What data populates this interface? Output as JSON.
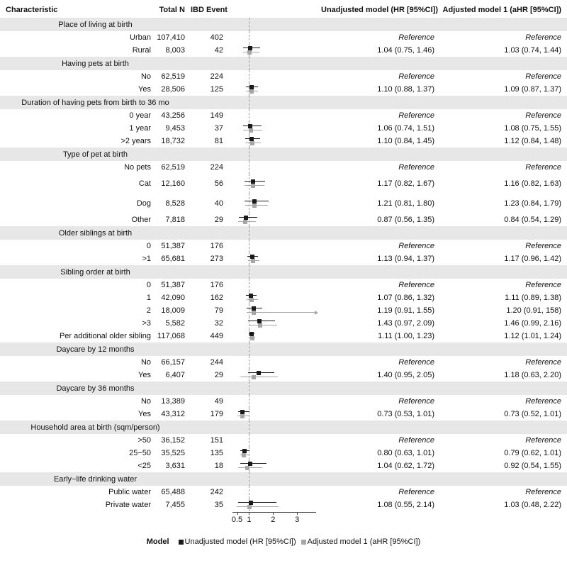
{
  "chart_data": {
    "type": "scatter",
    "subtype": "forest_plot",
    "title": "",
    "header": {
      "characteristic": "Characteristic",
      "total_n": "Total N",
      "ibd_event": "IBD Event",
      "unadjusted": "Unadjusted model (HR [95%CI])",
      "adjusted": "Adjusted model 1 (aHR [95%CI])"
    },
    "axis": {
      "scale": "linear",
      "min": 0.1,
      "max": 4.0,
      "ref": 1,
      "line_from": 0.3,
      "line_to": 3.8,
      "arrow_clamp": 3.72,
      "ticks": [
        {
          "value": 0.5,
          "label": "0.5"
        },
        {
          "value": 1,
          "label": "1"
        },
        {
          "value": 2,
          "label": "2"
        },
        {
          "value": 3,
          "label": "3"
        }
      ]
    },
    "colors": {
      "unadjusted": "#1a1a1a",
      "adjusted": "#a6a6a6",
      "section_band": "#e7e7e7"
    },
    "legend": {
      "title": "Model",
      "items": [
        {
          "label": "Unadjusted model (HR [95%CI])",
          "key": "unadjusted"
        },
        {
          "label": "Adjusted model 1 (aHR [95%CI])",
          "key": "adjusted"
        }
      ]
    },
    "rows": [
      {
        "type": "section",
        "label": "Place of living at birth"
      },
      {
        "type": "data",
        "label": "Urban",
        "total_n": "107,410",
        "ibd_event": "402",
        "unadjusted": "Reference",
        "adjusted": "Reference",
        "is_reference": true
      },
      {
        "type": "data",
        "label": "Rural",
        "total_n": "8,003",
        "ibd_event": "42",
        "unadjusted": "1.04 (0.75, 1.46)",
        "adjusted": "1.03 (0.74, 1.44)",
        "hr": {
          "est": 1.04,
          "lo": 0.75,
          "hi": 1.46
        },
        "ahr": {
          "est": 1.03,
          "lo": 0.74,
          "hi": 1.44
        }
      },
      {
        "type": "section",
        "label": "Having pets at birth"
      },
      {
        "type": "data",
        "label": "No",
        "total_n": "62,519",
        "ibd_event": "224",
        "unadjusted": "Reference",
        "adjusted": "Reference",
        "is_reference": true
      },
      {
        "type": "data",
        "label": "Yes",
        "total_n": "28,506",
        "ibd_event": "125",
        "unadjusted": "1.10 (0.88, 1.37)",
        "adjusted": "1.09 (0.87, 1.37)",
        "hr": {
          "est": 1.1,
          "lo": 0.88,
          "hi": 1.37
        },
        "ahr": {
          "est": 1.09,
          "lo": 0.87,
          "hi": 1.37
        }
      },
      {
        "type": "section",
        "label": "Duration of having pets from birth to 36 mo"
      },
      {
        "type": "data",
        "label": "0 year",
        "total_n": "43,256",
        "ibd_event": "149",
        "unadjusted": "Reference",
        "adjusted": "Reference",
        "is_reference": true
      },
      {
        "type": "data",
        "label": "1 year",
        "total_n": "9,453",
        "ibd_event": "37",
        "unadjusted": "1.06 (0.74, 1.51)",
        "adjusted": "1.08 (0.75, 1.55)",
        "hr": {
          "est": 1.06,
          "lo": 0.74,
          "hi": 1.51
        },
        "ahr": {
          "est": 1.08,
          "lo": 0.75,
          "hi": 1.55
        }
      },
      {
        "type": "data",
        "label": ">2 years",
        "total_n": "18,732",
        "ibd_event": "81",
        "unadjusted": "1.10 (0.84, 1.45)",
        "adjusted": "1.12 (0.84, 1.48)",
        "hr": {
          "est": 1.1,
          "lo": 0.84,
          "hi": 1.45
        },
        "ahr": {
          "est": 1.12,
          "lo": 0.84,
          "hi": 1.48
        }
      },
      {
        "type": "section",
        "label": "Type of pet at birth"
      },
      {
        "type": "data",
        "label": "No pets",
        "total_n": "62,519",
        "ibd_event": "224",
        "unadjusted": "Reference",
        "adjusted": "Reference",
        "is_reference": true
      },
      {
        "type": "data",
        "label": "Cat",
        "total_n": "12,160",
        "ibd_event": "56",
        "tall": true,
        "unadjusted": "1.17 (0.82, 1.67)",
        "adjusted": "1.16 (0.82, 1.63)",
        "hr": {
          "est": 1.17,
          "lo": 0.82,
          "hi": 1.67
        },
        "ahr": {
          "est": 1.16,
          "lo": 0.82,
          "hi": 1.63
        }
      },
      {
        "type": "data",
        "label": "Dog",
        "total_n": "8,528",
        "ibd_event": "40",
        "tall": true,
        "unadjusted": "1.21 (0.81, 1.80)",
        "adjusted": "1.23 (0.84, 1.79)",
        "hr": {
          "est": 1.21,
          "lo": 0.81,
          "hi": 1.8
        },
        "ahr": {
          "est": 1.23,
          "lo": 0.84,
          "hi": 1.79
        }
      },
      {
        "type": "data",
        "label": "Other",
        "total_n": "7,818",
        "ibd_event": "29",
        "unadjusted": "0.87 (0.56, 1.35)",
        "adjusted": "0.84 (0.54, 1.29)",
        "hr": {
          "est": 0.87,
          "lo": 0.56,
          "hi": 1.35
        },
        "ahr": {
          "est": 0.84,
          "lo": 0.54,
          "hi": 1.29
        }
      },
      {
        "type": "section",
        "label": "Older siblings at birth"
      },
      {
        "type": "data",
        "label": "0",
        "total_n": "51,387",
        "ibd_event": "176",
        "unadjusted": "Reference",
        "adjusted": "Reference",
        "is_reference": true
      },
      {
        "type": "data",
        "label": ">1",
        "total_n": "65,681",
        "ibd_event": "273",
        "unadjusted": "1.13 (0.94, 1.37)",
        "adjusted": "1.17 (0.96, 1.42)",
        "hr": {
          "est": 1.13,
          "lo": 0.94,
          "hi": 1.37
        },
        "ahr": {
          "est": 1.17,
          "lo": 0.96,
          "hi": 1.42
        }
      },
      {
        "type": "section",
        "label": "Sibling order at birth"
      },
      {
        "type": "data",
        "label": "0",
        "total_n": "51,387",
        "ibd_event": "176",
        "unadjusted": "Reference",
        "adjusted": "Reference",
        "is_reference": true
      },
      {
        "type": "data",
        "label": "1",
        "total_n": "42,090",
        "ibd_event": "162",
        "unadjusted": "1.07 (0.86, 1.32)",
        "adjusted": "1.11 (0.89, 1.38)",
        "hr": {
          "est": 1.07,
          "lo": 0.86,
          "hi": 1.32
        },
        "ahr": {
          "est": 1.11,
          "lo": 0.89,
          "hi": 1.38
        }
      },
      {
        "type": "data",
        "label": "2",
        "total_n": "18,009",
        "ibd_event": "79",
        "unadjusted": "1.19 (0.91, 1.55)",
        "adjusted": "1.20 (0.91, 158)",
        "hr": {
          "est": 1.19,
          "lo": 0.91,
          "hi": 1.55
        },
        "ahr": {
          "est": 1.2,
          "lo": 0.91,
          "hi": 158,
          "arrow": true
        }
      },
      {
        "type": "data",
        "label": ">3",
        "total_n": "5,582",
        "ibd_event": "32",
        "unadjusted": "1.43 (0.97, 2.09)",
        "adjusted": "1.46 (0.99, 2.16)",
        "hr": {
          "est": 1.43,
          "lo": 0.97,
          "hi": 2.09
        },
        "ahr": {
          "est": 1.46,
          "lo": 0.99,
          "hi": 2.16
        }
      },
      {
        "type": "data",
        "label": "Per additional older sibling",
        "total_n": "117,068",
        "ibd_event": "449",
        "unadjusted": "1.11 (1.00, 1.23)",
        "adjusted": "1.12 (1.01, 1.24)",
        "hr": {
          "est": 1.11,
          "lo": 1.0,
          "hi": 1.23
        },
        "ahr": {
          "est": 1.12,
          "lo": 1.01,
          "hi": 1.24
        }
      },
      {
        "type": "section",
        "label": "Daycare by 12 months"
      },
      {
        "type": "data",
        "label": "No",
        "total_n": "66,157",
        "ibd_event": "244",
        "unadjusted": "Reference",
        "adjusted": "Reference",
        "is_reference": true
      },
      {
        "type": "data",
        "label": "Yes",
        "total_n": "6,407",
        "ibd_event": "29",
        "unadjusted": "1.40 (0.95, 2.05)",
        "adjusted": "1.18 (0.63, 2.20)",
        "hr": {
          "est": 1.4,
          "lo": 0.95,
          "hi": 2.05
        },
        "ahr": {
          "est": 1.18,
          "lo": 0.63,
          "hi": 2.2
        }
      },
      {
        "type": "section",
        "label": "Daycare by 36 months"
      },
      {
        "type": "data",
        "label": "No",
        "total_n": "13,389",
        "ibd_event": "49",
        "unadjusted": "Reference",
        "adjusted": "Reference",
        "is_reference": true
      },
      {
        "type": "data",
        "label": "Yes",
        "total_n": "43,312",
        "ibd_event": "179",
        "unadjusted": "0.73 (0.53, 1.01)",
        "adjusted": "0.73 (0.52, 1.01)",
        "hr": {
          "est": 0.73,
          "lo": 0.53,
          "hi": 1.01
        },
        "ahr": {
          "est": 0.73,
          "lo": 0.52,
          "hi": 1.01
        }
      },
      {
        "type": "section",
        "label": "Household area at birth (sqm/person)"
      },
      {
        "type": "data",
        "label": ">50",
        "total_n": "36,152",
        "ibd_event": "151",
        "unadjusted": "Reference",
        "adjusted": "Reference",
        "is_reference": true
      },
      {
        "type": "data",
        "label": "25−50",
        "total_n": "35,525",
        "ibd_event": "135",
        "unadjusted": "0.80 (0.63, 1.01)",
        "adjusted": "0.79 (0.62, 1.01)",
        "hr": {
          "est": 0.8,
          "lo": 0.63,
          "hi": 1.01
        },
        "ahr": {
          "est": 0.79,
          "lo": 0.62,
          "hi": 1.01
        }
      },
      {
        "type": "data",
        "label": "<25",
        "total_n": "3,631",
        "ibd_event": "18",
        "unadjusted": "1.04 (0.62, 1.72)",
        "adjusted": "0.92 (0.54, 1.55)",
        "hr": {
          "est": 1.04,
          "lo": 0.62,
          "hi": 1.72
        },
        "ahr": {
          "est": 0.92,
          "lo": 0.54,
          "hi": 1.55
        }
      },
      {
        "type": "section",
        "label": "Early−life drinking water"
      },
      {
        "type": "data",
        "label": "Public water",
        "total_n": "65,488",
        "ibd_event": "242",
        "unadjusted": "Reference",
        "adjusted": "Reference",
        "is_reference": true
      },
      {
        "type": "data",
        "label": "Private water",
        "total_n": "7,455",
        "ibd_event": "35",
        "unadjusted": "1.08 (0.55, 2.14)",
        "adjusted": "1.03 (0.48, 2.22)",
        "hr": {
          "est": 1.08,
          "lo": 0.55,
          "hi": 2.14
        },
        "ahr": {
          "est": 1.03,
          "lo": 0.48,
          "hi": 2.22
        }
      }
    ]
  }
}
